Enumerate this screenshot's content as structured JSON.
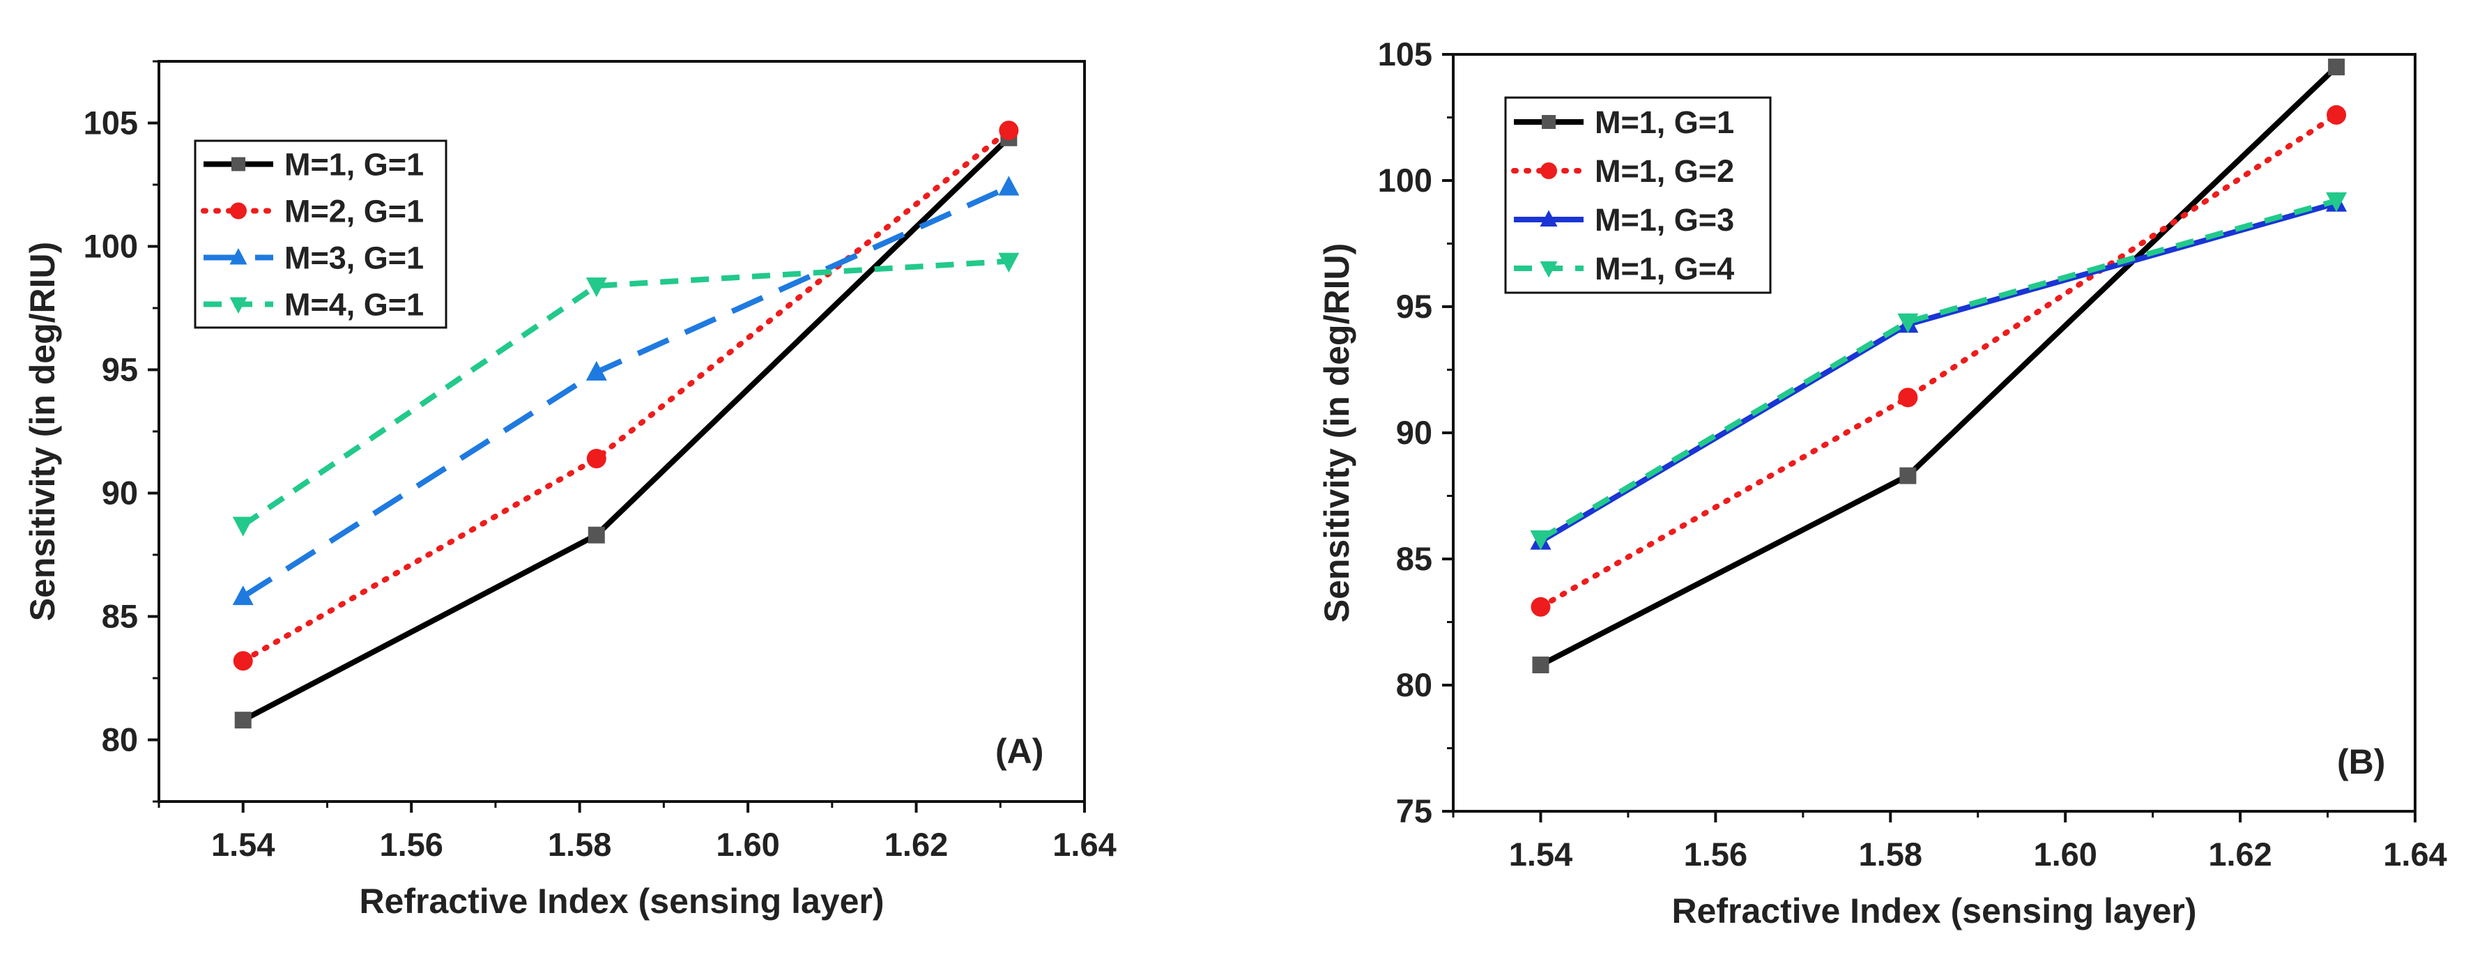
{
  "chart_data": [
    {
      "type": "line",
      "panel_label": "(A)",
      "xlabel": "Refractive Index (sensing layer)",
      "ylabel": "Sensitivity (in deg/RIU)",
      "xlim": [
        1.53,
        1.64
      ],
      "ylim": [
        77.5,
        107.5
      ],
      "xticks": [
        1.54,
        1.56,
        1.58,
        1.6,
        1.62,
        1.64
      ],
      "xtick_labels": [
        "1.54",
        "1.56",
        "1.58",
        "1.60",
        "1.62",
        "1.64"
      ],
      "yticks": [
        80,
        85,
        90,
        95,
        100,
        105
      ],
      "ytick_labels": [
        "80",
        "85",
        "90",
        "95",
        "100",
        "105"
      ],
      "legend_position": "top-left",
      "x": [
        1.54,
        1.582,
        1.631
      ],
      "series": [
        {
          "name": "M=1, G=1",
          "values": [
            80.8,
            88.3,
            104.4
          ],
          "color": "#000000",
          "dash": "solid",
          "marker": "square"
        },
        {
          "name": "M=2, G=1",
          "values": [
            83.2,
            91.4,
            104.7
          ],
          "color": "#ee1c1c",
          "dash": "dot",
          "marker": "circle"
        },
        {
          "name": "M=3, G=1",
          "values": [
            85.8,
            94.9,
            102.4
          ],
          "color": "#1f7ae0",
          "dash": "dash",
          "marker": "triangle-up"
        },
        {
          "name": "M=4, G=1",
          "values": [
            88.7,
            98.4,
            99.4
          ],
          "color": "#22c98b",
          "dash": "shortdash",
          "marker": "triangle-down"
        }
      ]
    },
    {
      "type": "line",
      "panel_label": "(B)",
      "xlabel": "Refractive Index (sensing layer)",
      "ylabel": "Sensitivity (in deg/RIU)",
      "xlim": [
        1.53,
        1.64
      ],
      "ylim": [
        75,
        105
      ],
      "xticks": [
        1.54,
        1.56,
        1.58,
        1.6,
        1.62,
        1.64
      ],
      "xtick_labels": [
        "1.54",
        "1.56",
        "1.58",
        "1.60",
        "1.62",
        "1.64"
      ],
      "yticks": [
        75,
        80,
        85,
        90,
        95,
        100,
        105
      ],
      "ytick_labels": [
        "75",
        "80",
        "85",
        "90",
        "95",
        "100",
        "105"
      ],
      "legend_position": "top-left",
      "x": [
        1.54,
        1.582,
        1.631
      ],
      "series": [
        {
          "name": "M=1, G=1",
          "values": [
            80.8,
            88.3,
            104.5
          ],
          "color": "#000000",
          "dash": "solid",
          "marker": "square"
        },
        {
          "name": "M=1, G=2",
          "values": [
            83.1,
            91.4,
            102.6
          ],
          "color": "#ee1c1c",
          "dash": "dot",
          "marker": "circle"
        },
        {
          "name": "M=1, G=3",
          "values": [
            85.7,
            94.3,
            99.1
          ],
          "color": "#1a35d4",
          "dash": "solid",
          "marker": "triangle-up"
        },
        {
          "name": "M=1, G=4",
          "values": [
            85.8,
            94.4,
            99.2
          ],
          "color": "#22c98b",
          "dash": "shortdash",
          "marker": "triangle-down"
        }
      ]
    }
  ]
}
